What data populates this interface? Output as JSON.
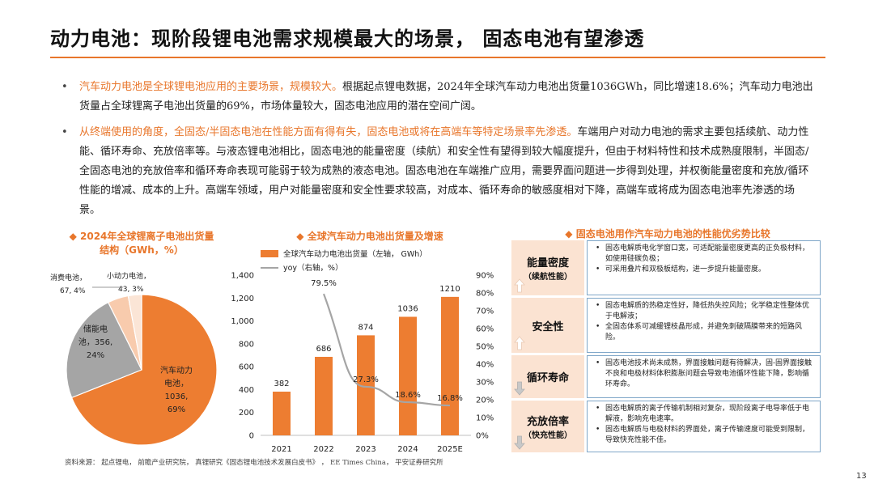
{
  "title": "动力电池：现阶段锂电池需求规模最大的场景， 固态电池有望渗透",
  "bullets": [
    {
      "highlight": "汽车动力电池是全球锂电池应用的主要场景，规模较大。",
      "text": "根据起点锂电数据，2024年全球汽车动力电池出货量1036GWh，同比增速18.6%；汽车动力电池出货量占全球锂离子电池出货量的69%，市场体量较大，固态电池应用的潜在空间广阔。"
    },
    {
      "highlight": "从终端使用的角度，全固态/半固态电池在性能方面有得有失，固态电池或将在高端车等特定场景率先渗透。",
      "text": "车端用户对动力电池的需求主要包括续航、动力性能、循环寿命、充放倍率等。与液态锂电池相比，固态电池的能量密度（续航）和安全性有望得到较大幅度提升，但由于材料特性和技术成熟度限制，半固态/全固态电池的充放倍率和循环寿命表现可能弱于较为成熟的液态电池。固态电池在车端推广应用，需要界面问题进一步得到处理，并权衡能量密度和充放/循环性能的增减、成本的上升。高端车领域，用户对能量密度和安全性要求较高，对成本、循环寿命的敏感度相对下降，高端车或将成为固态电池率先渗透的场景。"
    }
  ],
  "pie": {
    "title": "2024年全球锂离子电池出货量结构（GWh，%）",
    "chart_data": {
      "type": "pie",
      "title": "2024年全球锂离子电池出货量结构（GWh，%）",
      "slices": [
        {
          "name": "汽车动力电池",
          "value": 1036,
          "pct": "69%",
          "color": "#ed7d31"
        },
        {
          "name": "储能电池",
          "value": 356,
          "pct": "24%",
          "color": "#a5a5a5"
        },
        {
          "name": "消费电池",
          "value": 67,
          "pct": "4%",
          "color": "#f8cbad"
        },
        {
          "name": "小动力电池",
          "value": 43,
          "pct": "3%",
          "color": "#fbe5d6"
        }
      ]
    },
    "labels": {
      "ev": [
        "汽车动力",
        "电池，",
        "1036,",
        "69%"
      ],
      "ess": [
        "储能电",
        "池，356,",
        "24%"
      ],
      "consumer": "消费电池，",
      "consumer_val": "67, 4%",
      "small": "小动力电池，",
      "small_val": "43, 3%"
    }
  },
  "bar": {
    "title": "全球汽车动力电池出货量及增速",
    "legend_bar": "全球汽车动力电池出货量（左轴，   GWh）",
    "legend_line": "yoy（右轴，%）",
    "chart_data": {
      "type": "bar",
      "title": "全球汽车动力电池出货量及增速",
      "categories": [
        "2021",
        "2022",
        "2023",
        "2024",
        "2025E"
      ],
      "series": [
        {
          "name": "全球汽车动力电池出货量（左轴，GWh）",
          "values": [
            382,
            686,
            874,
            1036,
            1210
          ]
        },
        {
          "name": "yoy（右轴，%）",
          "values": [
            null,
            79.5,
            27.3,
            18.6,
            16.8
          ]
        }
      ],
      "value_labels": [
        "382",
        "686",
        "874",
        "1036",
        "1210"
      ],
      "yoy_labels": [
        "",
        "79.5%",
        "27.3%",
        "18.6%",
        "16.8%"
      ],
      "ylim_left": [
        0,
        1400
      ],
      "ylim_right": [
        0,
        90
      ],
      "left_ticks": [
        "0",
        "200",
        "400",
        "600",
        "800",
        "1,000",
        "1,200",
        "1,400"
      ],
      "right_ticks": [
        "0%",
        "10%",
        "20%",
        "30%",
        "40%",
        "50%",
        "60%",
        "70%",
        "80%",
        "90%"
      ],
      "colors": {
        "bar": "#ed7d31",
        "line": "#a5a5a5"
      }
    }
  },
  "compare": {
    "title": "固态电池用作汽车动力电池的性能优劣势比较",
    "rows": [
      {
        "label": "能量密度",
        "sub": "（续航性能）",
        "dir": "up",
        "items": [
          "固态电解质电化学窗口宽，可适配能量密度更高的正负极材料，如使用硅碳负极；",
          "可采用叠片和双极板结构，进一步提升能量密度。"
        ]
      },
      {
        "label": "安全性",
        "sub": "",
        "dir": "up",
        "items": [
          "固态电解质的热稳定性好，降低热失控风险；化学稳定性整体优于电解液；",
          "全固态体系可减缓锂枝晶形成，并避免刺破隔膜带来的短路风险。"
        ]
      },
      {
        "label": "循环寿命",
        "sub": "",
        "dir": "down",
        "items": [
          "固态电池技术尚未成熟，界面接触问题有待解决，固-固界面接触不良和电极材料体积膨胀问题会导致电池循环性能下降，影响循环寿命。"
        ]
      },
      {
        "label": "充放倍率",
        "sub": "（快充性能）",
        "dir": "down",
        "items": [
          "固态电解质的离子传输机制相对复杂，现阶段离子电导率低于电解液，影响充电速率。",
          "固态电解质与电极材料的界面处，离子传输速度可能受到限制，导致快充性能不佳。"
        ]
      }
    ]
  },
  "source": "资料来源： 起点锂电， 前瞻产业研究院， 真锂研究《固态锂电池技术发展白皮书》 ， EE Times China， 平安证券研究所",
  "page_number": "13"
}
